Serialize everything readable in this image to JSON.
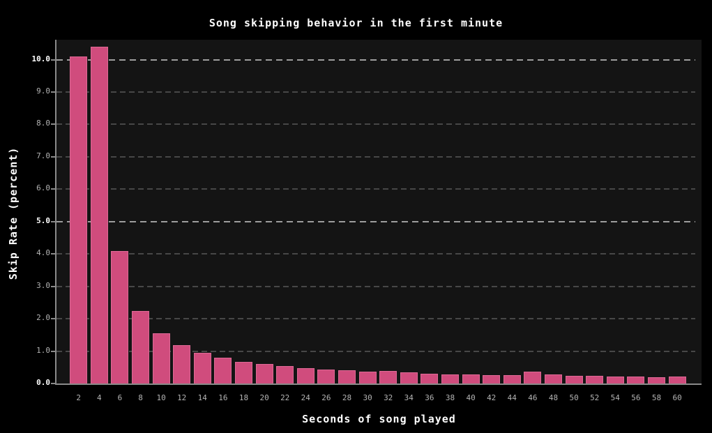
{
  "chart_data": {
    "type": "bar",
    "title": "Song skipping behavior in the first minute",
    "xlabel": "Seconds of song played",
    "ylabel": "Skip Rate (percent)",
    "categories": [
      2,
      4,
      6,
      8,
      10,
      12,
      14,
      16,
      18,
      20,
      22,
      24,
      26,
      28,
      30,
      32,
      34,
      36,
      38,
      40,
      42,
      44,
      46,
      48,
      50,
      52,
      54,
      56,
      58,
      60
    ],
    "values": [
      10.1,
      10.4,
      4.1,
      2.25,
      1.55,
      1.18,
      0.95,
      0.8,
      0.67,
      0.6,
      0.53,
      0.48,
      0.44,
      0.41,
      0.36,
      0.39,
      0.34,
      0.3,
      0.27,
      0.28,
      0.26,
      0.26,
      0.36,
      0.28,
      0.23,
      0.24,
      0.22,
      0.22,
      0.2,
      0.22
    ],
    "ylim": [
      0,
      10.61
    ],
    "yticks": [
      0,
      1,
      2,
      3,
      4,
      5,
      6,
      7,
      8,
      9,
      10
    ],
    "ytick_labels": [
      "0.0",
      "1.0",
      "2.0",
      "3.0",
      "4.0",
      "5.0",
      "6.0",
      "7.0",
      "8.0",
      "9.0",
      "10.0"
    ],
    "major_yticks": [
      0,
      5,
      10
    ],
    "grid": "horizontal-dashed",
    "legend": "none",
    "colors": {
      "background": "#000000",
      "plot_background": "#141414",
      "bar_fill": "#d04c7d",
      "bar_edge": "#de6995",
      "axis": "#8a8a8a",
      "major_grid": "#9e9e9e",
      "minor_grid": "#474747",
      "text": "#ffffff",
      "tick_text": "#b3b3b3"
    }
  }
}
